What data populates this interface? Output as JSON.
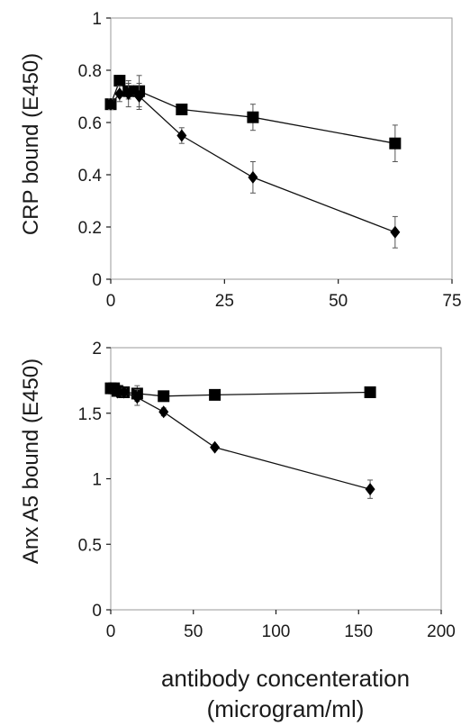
{
  "chart_data": [
    {
      "type": "line",
      "title": "",
      "xlabel": "",
      "ylabel": "CRP bound (E450)",
      "xlim": [
        0,
        75
      ],
      "ylim": [
        0,
        1
      ],
      "xticks": [
        0,
        25,
        50,
        75
      ],
      "yticks": [
        0,
        0.2,
        0.4,
        0.6,
        0.8,
        1
      ],
      "ytick_labels": [
        "0",
        "0.2",
        "0.4",
        "0.6",
        "0.8",
        "1"
      ],
      "grid": false,
      "series": [
        {
          "marker": "square",
          "x": [
            0,
            1.95,
            3.9,
            6.25,
            15.6,
            31.25,
            62.5
          ],
          "y": [
            0.67,
            0.76,
            0.72,
            0.72,
            0.65,
            0.62,
            0.52
          ],
          "err": [
            0.02,
            0.02,
            0.03,
            0.06,
            0.02,
            0.05,
            0.07
          ]
        },
        {
          "marker": "diamond",
          "x": [
            0,
            1.95,
            3.9,
            6.25,
            15.6,
            31.25,
            62.5
          ],
          "y": [
            0.67,
            0.71,
            0.71,
            0.7,
            0.55,
            0.39,
            0.18
          ],
          "err": [
            0.02,
            0.03,
            0.05,
            0.05,
            0.03,
            0.06,
            0.06
          ]
        }
      ]
    },
    {
      "type": "line",
      "title": "",
      "xlabel": "antibody concenteration (microgram/ml)",
      "xlabel_lines": [
        "antibody concenteration",
        "(microgram/ml)"
      ],
      "ylabel": "Anx A5 bound (E450)",
      "xlim": [
        0,
        200
      ],
      "ylim": [
        0,
        2
      ],
      "xticks": [
        0,
        50,
        100,
        150,
        200
      ],
      "yticks": [
        0,
        0.5,
        1,
        1.5,
        2
      ],
      "ytick_labels": [
        "0",
        "0.5",
        "1",
        "1.5",
        "2"
      ],
      "grid": false,
      "series": [
        {
          "marker": "square",
          "x": [
            0,
            2,
            4,
            8,
            16,
            32,
            63,
            157
          ],
          "y": [
            1.69,
            1.69,
            1.67,
            1.66,
            1.65,
            1.63,
            1.64,
            1.66
          ],
          "err": [
            0.02,
            0.02,
            0.02,
            0.03,
            0.06,
            0.02,
            0.03,
            0.02
          ]
        },
        {
          "marker": "diamond",
          "x": [
            0,
            2,
            4,
            8,
            16,
            32,
            63,
            157
          ],
          "y": [
            1.69,
            1.68,
            1.66,
            1.66,
            1.62,
            1.51,
            1.24,
            0.92
          ],
          "err": [
            0.02,
            0.02,
            0.02,
            0.03,
            0.06,
            0.03,
            0.02,
            0.07
          ]
        }
      ]
    }
  ]
}
